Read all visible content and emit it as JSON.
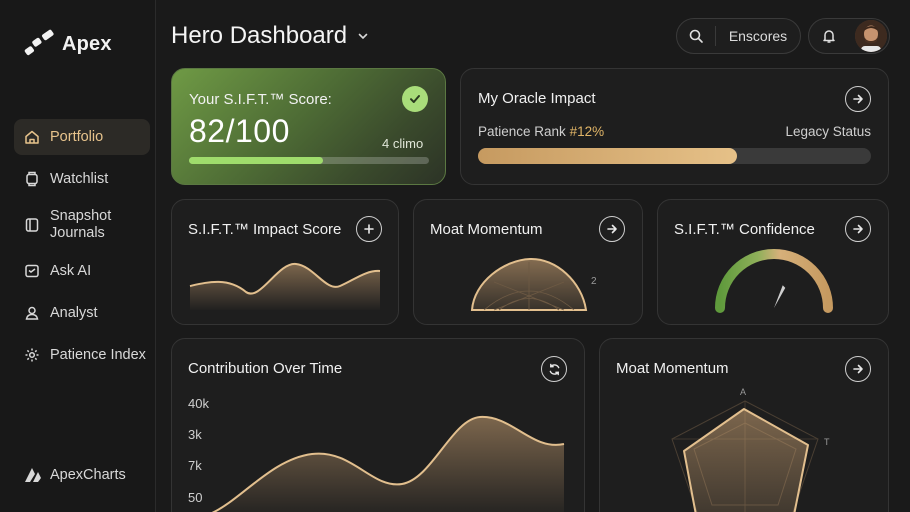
{
  "app": {
    "name": "Apex"
  },
  "sidebar": {
    "items": [
      {
        "label": "Portfolio",
        "icon": "home-icon",
        "active": true
      },
      {
        "label": "Watchlist",
        "icon": "watch-icon",
        "active": false
      },
      {
        "label": "Snapshot\nJournals",
        "icon": "journal-icon",
        "active": false
      },
      {
        "label": "Ask AI",
        "icon": "chat-icon",
        "active": false
      },
      {
        "label": "Analyst",
        "icon": "user-icon",
        "active": false
      },
      {
        "label": "Patience Index",
        "icon": "gear-icon",
        "active": false
      }
    ],
    "footer_label": "ApexCharts"
  },
  "header": {
    "title": "Hero Dashboard",
    "search_label": "Enscores"
  },
  "score_card": {
    "label": "Your S.I.F.T.™ Score:",
    "value": "82/100",
    "sub": "4 climo",
    "progress": 0.56
  },
  "oracle_card": {
    "title": "My Oracle Impact",
    "rank_label": "Patience Rank ",
    "rank_value": "#12%",
    "legacy_label": "Legacy Status",
    "progress": 0.66
  },
  "mini_cards": {
    "impact": {
      "title": "S.I.F.T.™ Impact Score"
    },
    "moat": {
      "title": "Moat Momentum",
      "tick": "2"
    },
    "confidence": {
      "title": "S.I.F.T.™ Confidence",
      "gauge_level": 0.62
    }
  },
  "contribution": {
    "title": "Contribution Over Time",
    "y_ticks": [
      "40k",
      "3k",
      "7k",
      "50"
    ]
  },
  "moat_big": {
    "title": "Moat Momentum",
    "labels": [
      "A",
      "T"
    ]
  },
  "colors": {
    "accent_gold": "#e1b567",
    "accent_green": "#9fdc6c",
    "background": "#1a1a1a"
  }
}
